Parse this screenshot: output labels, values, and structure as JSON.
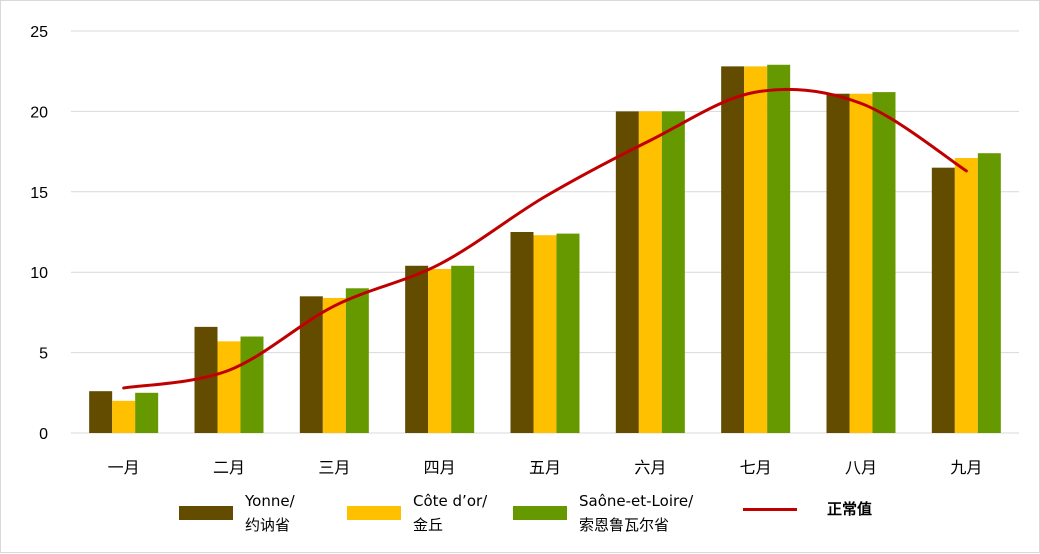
{
  "chart_data": {
    "type": "bar",
    "categories": [
      "一月",
      "二月",
      "三月",
      "四月",
      "五月",
      "六月",
      "七月",
      "八月",
      "九月"
    ],
    "ylim": [
      0,
      25
    ],
    "yticks": [
      0,
      5,
      10,
      15,
      20,
      25
    ],
    "grid": true,
    "legend_position": "bottom",
    "series": [
      {
        "name": "Yonne/\n约讷省",
        "color": "#634b00",
        "values": [
          2.6,
          6.6,
          8.5,
          10.4,
          12.5,
          20.0,
          22.8,
          21.1,
          16.5
        ]
      },
      {
        "name": "Côte d’or/\n金丘",
        "color": "#ffc000",
        "values": [
          2.0,
          5.7,
          8.4,
          10.2,
          12.3,
          20.0,
          22.8,
          21.1,
          17.1
        ]
      },
      {
        "name": "Saône-et-Loire/\n索恩鲁瓦尔省",
        "color": "#669900",
        "values": [
          2.5,
          6.0,
          9.0,
          10.4,
          12.4,
          20.0,
          22.9,
          21.2,
          17.4
        ]
      }
    ],
    "line_series": {
      "name": "正常值",
      "color": "#c00000",
      "values": [
        2.8,
        3.9,
        7.9,
        10.5,
        14.7,
        18.2,
        21.2,
        20.5,
        16.3
      ]
    }
  }
}
